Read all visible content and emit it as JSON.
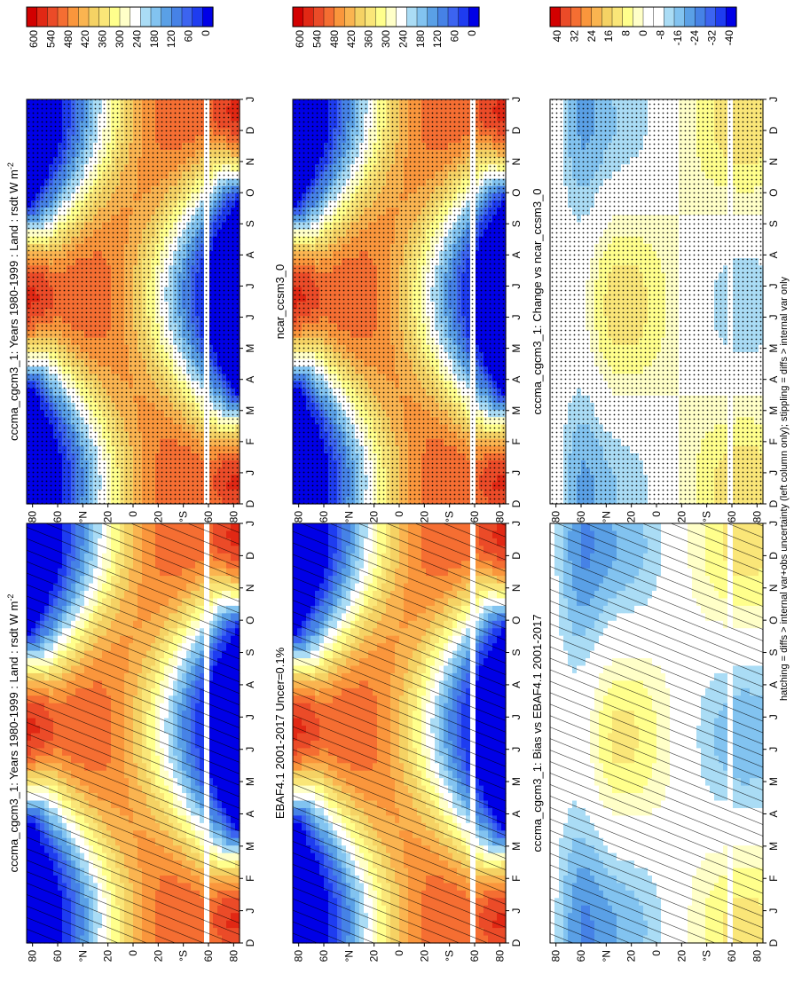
{
  "footer_note": "hatching = diffs > internal var+obs uncertainty (left column only); stippling = diffs > internal var only",
  "colors": {
    "levels_abs": [
      "#0000e6",
      "#1e3cf0",
      "#3c64f0",
      "#4682e6",
      "#5aa0e6",
      "#82c3f0",
      "#aadcf5",
      "#ffffff",
      "#ffffc8",
      "#ffff8c",
      "#fae678",
      "#f5d264",
      "#fab450",
      "#fa963c",
      "#f56e32",
      "#eb4b28",
      "#e12814",
      "#d20000"
    ],
    "levels_diff": [
      "#0000e6",
      "#1e3cf0",
      "#3c64f0",
      "#4682e6",
      "#5aa0e6",
      "#82c3f0",
      "#aadcf5",
      "#ffffff",
      "#ffffff",
      "#ffffc8",
      "#ffff8c",
      "#fae678",
      "#f5d264",
      "#fab450",
      "#fa963c",
      "#f56e32",
      "#eb4b28",
      "#d20000"
    ]
  },
  "chart_data": [
    {
      "type": "heatmap",
      "title": "cccma_cgcm3_1: Years 1980-1999 : Land : rsdt W m",
      "title_sup": "-2",
      "variable": "rsdt",
      "units": "W m-2",
      "overlay": "hatching",
      "x_ticks": [
        "D",
        "J",
        "F",
        "M",
        "A",
        "M",
        "J",
        "J",
        "A",
        "S",
        "O",
        "N",
        "D",
        "J"
      ],
      "y_ticks": [
        "80",
        "60",
        "°N",
        "20",
        "0",
        "20",
        "°S",
        "60",
        "80"
      ],
      "colorbar_labels": [
        "600",
        "540",
        "480",
        "420",
        "360",
        "300",
        "240",
        "180",
        "120",
        "60",
        "0"
      ],
      "colorbar": "abs"
    },
    {
      "type": "heatmap",
      "title": "EBAF4.1 2001-2017 Uncer=0.1%",
      "variable": "rsdt",
      "units": "W m-2",
      "overlay": "hatching",
      "x_ticks": [
        "D",
        "J",
        "F",
        "M",
        "A",
        "M",
        "J",
        "J",
        "A",
        "S",
        "O",
        "N",
        "D",
        "J"
      ],
      "y_ticks": [
        "80",
        "60",
        "°N",
        "20",
        "0",
        "20",
        "°S",
        "60",
        "80"
      ],
      "colorbar_labels": [
        "600",
        "540",
        "480",
        "420",
        "360",
        "300",
        "240",
        "180",
        "120",
        "60",
        "0"
      ],
      "colorbar": "abs"
    },
    {
      "type": "heatmap",
      "title": "cccma_cgcm3_1: Bias vs EBAF4.1 2001-2017",
      "variable": "rsdt bias",
      "units": "W m-2",
      "overlay": "hatching",
      "x_ticks": [
        "D",
        "J",
        "F",
        "M",
        "A",
        "M",
        "J",
        "J",
        "A",
        "S",
        "O",
        "N",
        "D",
        "J"
      ],
      "y_ticks": [
        "80",
        "60",
        "°N",
        "20",
        "0",
        "20",
        "°S",
        "60",
        "80"
      ],
      "colorbar_labels": [
        "40",
        "32",
        "24",
        "16",
        "8",
        "0",
        "-8",
        "-16",
        "-24",
        "-32",
        "-40"
      ],
      "colorbar": "diff"
    },
    {
      "type": "heatmap",
      "title": "cccma_cgcm3_1: Years 1980-1999 : Land : rsdt W m",
      "title_sup": "-2",
      "variable": "rsdt",
      "units": "W m-2",
      "overlay": "stippling",
      "x_ticks": [
        "D",
        "J",
        "F",
        "M",
        "A",
        "M",
        "J",
        "J",
        "A",
        "S",
        "O",
        "N",
        "D",
        "J"
      ],
      "y_ticks": [
        "80",
        "60",
        "°N",
        "20",
        "0",
        "20",
        "°S",
        "60",
        "80"
      ],
      "colorbar_labels": [
        "600",
        "540",
        "480",
        "420",
        "360",
        "300",
        "240",
        "180",
        "120",
        "60",
        "0"
      ],
      "colorbar": "abs"
    },
    {
      "type": "heatmap",
      "title": "ncar_ccsm3_0",
      "variable": "rsdt",
      "units": "W m-2",
      "overlay": "stippling",
      "x_ticks": [
        "D",
        "J",
        "F",
        "M",
        "A",
        "M",
        "J",
        "J",
        "A",
        "S",
        "O",
        "N",
        "D",
        "J"
      ],
      "y_ticks": [
        "80",
        "60",
        "°N",
        "20",
        "0",
        "20",
        "°S",
        "60",
        "80"
      ],
      "colorbar_labels": [
        "600",
        "540",
        "480",
        "420",
        "360",
        "300",
        "240",
        "180",
        "120",
        "60",
        "0"
      ],
      "colorbar": "abs"
    },
    {
      "type": "heatmap",
      "title": "cccma_cgcm3_1: Change vs ncar_ccsm3_0",
      "variable": "rsdt difference",
      "units": "W m-2",
      "overlay": "stippling",
      "x_ticks": [
        "D",
        "J",
        "F",
        "M",
        "A",
        "M",
        "J",
        "J",
        "A",
        "S",
        "O",
        "N",
        "D",
        "J"
      ],
      "y_ticks": [
        "80",
        "60",
        "°N",
        "20",
        "0",
        "20",
        "°S",
        "60",
        "80"
      ],
      "colorbar_labels": [
        "40",
        "32",
        "24",
        "16",
        "8",
        "0",
        "-8",
        "-16",
        "-24",
        "-32",
        "-40"
      ],
      "colorbar": "diff"
    }
  ]
}
